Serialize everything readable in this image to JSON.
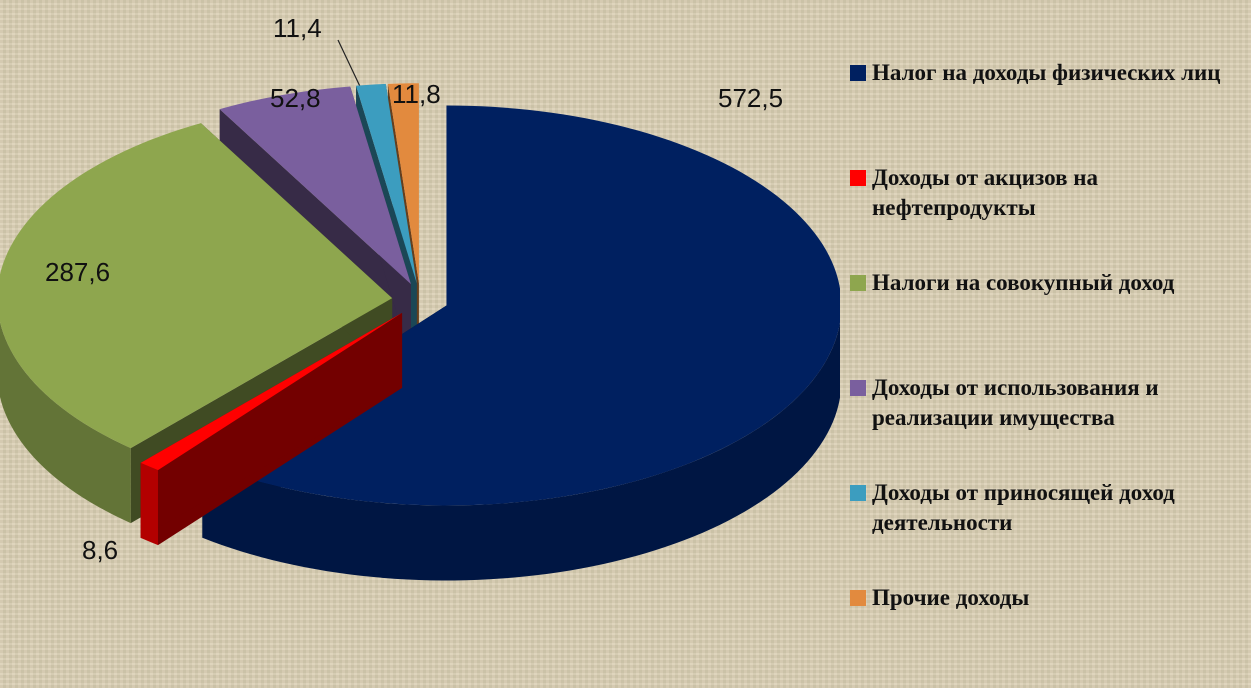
{
  "chart_data": {
    "type": "pie3d",
    "categories": [
      "Налог на доходы физических лиц",
      "Доходы от акцизов на нефтепродукты",
      "Налоги на совокупный доход",
      "Доходы от использования и реализации имущества",
      "Доходы от приносящей доход деятельности",
      "Прочие доходы"
    ],
    "values": [
      572.5,
      8.6,
      287.6,
      52.8,
      11.4,
      11.8
    ],
    "value_labels": [
      "572,5",
      "8,6",
      "287,6",
      "52,8",
      "11,4",
      "11,8"
    ],
    "colors": [
      "#002060",
      "#ff0000",
      "#8ea64e",
      "#7a5f9e",
      "#3c9dbf",
      "#e28a3e"
    ]
  }
}
